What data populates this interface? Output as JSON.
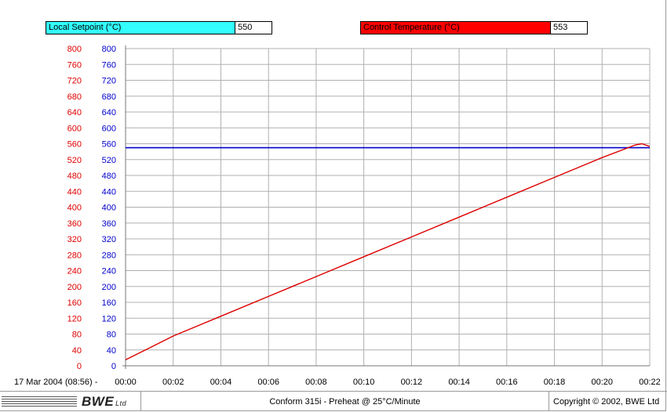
{
  "legend": {
    "setpoint_label": "Local Setpoint  (°C)",
    "setpoint_value": "550",
    "control_label": "Control Temperature (°C)",
    "control_value": "553"
  },
  "footer": {
    "logo_text": "BWE",
    "logo_ltd": "Ltd",
    "title": "Conform 315i - Preheat @ 25°C/Minute",
    "copyright": "Copyright © 2002, BWE Ltd"
  },
  "colors": {
    "setpoint": "#0000cc",
    "control": "#dd0000",
    "setpoint_legend_bg": "#33ffff",
    "control_legend_bg": "#ff0000",
    "grid": "#b0b0b0"
  },
  "chart_data": {
    "type": "line",
    "start_label": "17 Mar 2004 (08:56) -",
    "x_ticks": [
      "00:00",
      "00:02",
      "00:04",
      "00:06",
      "00:08",
      "00:10",
      "00:12",
      "00:14",
      "00:16",
      "00:18",
      "00:20",
      "00:22"
    ],
    "y_ticks": [
      0,
      40,
      80,
      120,
      160,
      200,
      240,
      280,
      320,
      360,
      400,
      440,
      480,
      520,
      560,
      600,
      640,
      680,
      720,
      760,
      800
    ],
    "xlim": [
      "00:00",
      "00:22"
    ],
    "ylim": [
      0,
      800
    ],
    "grid": true,
    "series": [
      {
        "name": "Local Setpoint  (°C)",
        "color": "#0000cc",
        "x": [
          "00:00",
          "00:22"
        ],
        "y": [
          550,
          550
        ]
      },
      {
        "name": "Control Temperature (°C)",
        "color": "#dd0000",
        "x": [
          "00:00",
          "00:00:30",
          "00:01",
          "00:02",
          "00:04",
          "00:06",
          "00:08",
          "00:10",
          "00:12",
          "00:14",
          "00:16",
          "00:18",
          "00:20",
          "00:21:24",
          "00:21:40",
          "00:22"
        ],
        "y": [
          15,
          30,
          45,
          75,
          125,
          175,
          225,
          275,
          325,
          375,
          425,
          475,
          525,
          557,
          560,
          553
        ]
      }
    ]
  }
}
